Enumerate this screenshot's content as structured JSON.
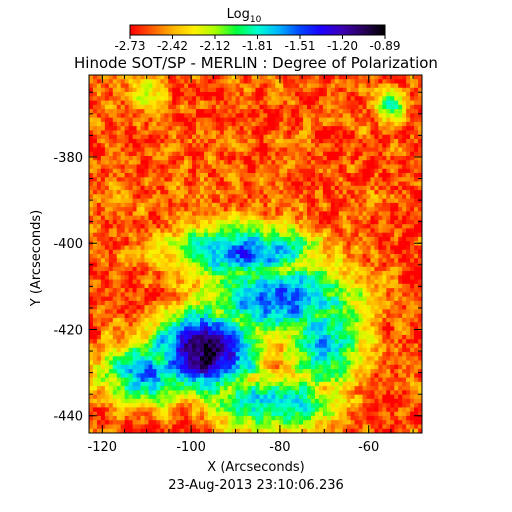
{
  "chart_data": {
    "type": "heatmap",
    "title": "Hinode SOT/SP - MERLIN : Degree of Polarization",
    "colorbar": {
      "label_base": "Log",
      "label_sub": "10",
      "ticks": [
        "-2.73",
        "-2.42",
        "-2.12",
        "-1.81",
        "-1.51",
        "-1.20",
        "-0.89"
      ],
      "range": [
        -2.73,
        -0.89
      ],
      "colormap": [
        "#ff0000",
        "#ff5a00",
        "#ffb400",
        "#fff000",
        "#a8ff00",
        "#00ff3c",
        "#00ffd2",
        "#00b4ff",
        "#0046ff",
        "#1e00ff",
        "#3c00b4",
        "#28005a",
        "#000000"
      ]
    },
    "xlabel": "X (Arcseconds)",
    "ylabel": "Y (Arcseconds)",
    "xlim": [
      -123,
      -48
    ],
    "ylim": [
      -444,
      -361
    ],
    "xticks": [
      -120,
      -100,
      -80,
      -60
    ],
    "yticks": [
      -380,
      -400,
      -420,
      -440
    ],
    "xtick_labels": [
      "-120",
      "-100",
      "-80",
      "-60"
    ],
    "ytick_labels": [
      "-380",
      "-400",
      "-420",
      "-440"
    ],
    "grid": false,
    "features": [
      {
        "x": -97,
        "y": -425,
        "level": -1.0,
        "sx": 9,
        "sy": 7
      },
      {
        "x": -80,
        "y": -413,
        "level": -1.55,
        "sx": 14,
        "sy": 7
      },
      {
        "x": -70,
        "y": -423,
        "level": -1.7,
        "sx": 7,
        "sy": 9
      },
      {
        "x": -88,
        "y": -402,
        "level": -1.55,
        "sx": 13,
        "sy": 5
      },
      {
        "x": -110,
        "y": -430,
        "level": -1.6,
        "sx": 8,
        "sy": 6
      },
      {
        "x": -82,
        "y": -437,
        "level": -1.7,
        "sx": 12,
        "sy": 5
      },
      {
        "x": -55,
        "y": -368,
        "level": -1.9,
        "sx": 3,
        "sy": 3
      },
      {
        "x": -110,
        "y": -365,
        "level": -2.1,
        "sx": 3,
        "sy": 3
      }
    ]
  },
  "timestamp": "23-Aug-2013 23:10:06.236"
}
